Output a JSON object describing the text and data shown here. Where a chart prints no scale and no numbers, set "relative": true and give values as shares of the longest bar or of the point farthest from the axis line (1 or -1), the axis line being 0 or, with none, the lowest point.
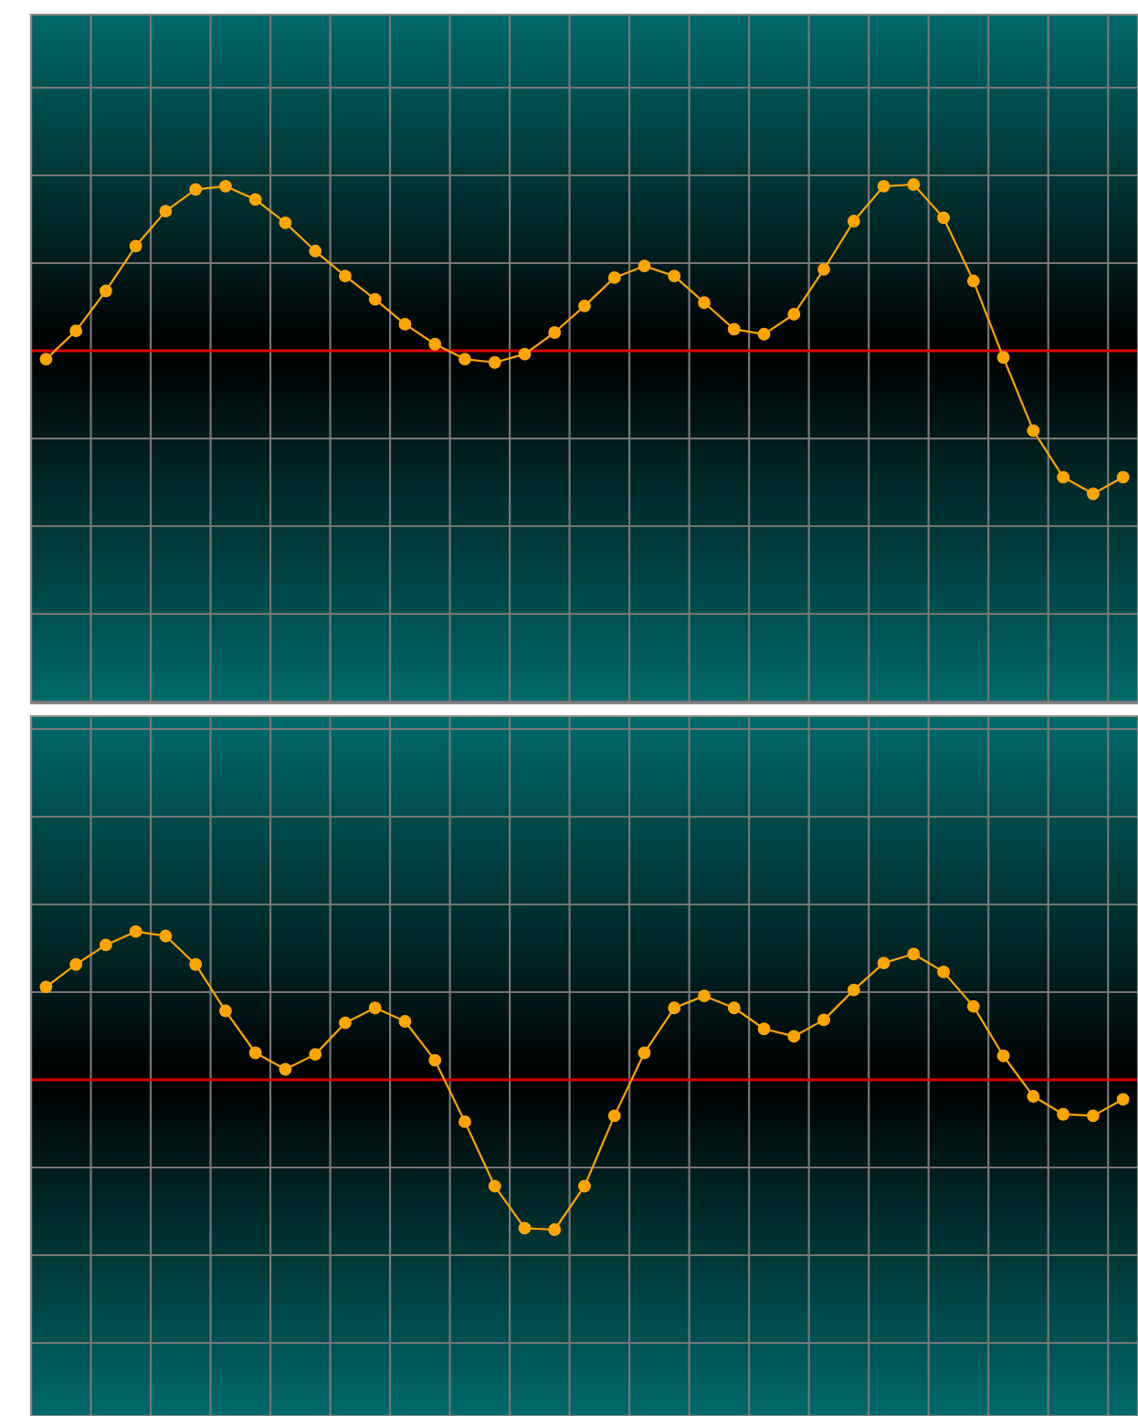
{
  "chart_data": [
    {
      "type": "line",
      "relative": true,
      "categories": [
        null,
        null,
        null,
        null,
        null,
        null,
        null,
        null,
        null,
        null,
        null,
        null,
        null,
        null,
        null,
        null,
        null,
        null,
        null,
        null,
        null,
        null,
        null,
        null,
        null,
        null,
        null,
        null,
        null,
        null,
        null,
        null,
        null,
        null,
        null,
        null,
        null
      ],
      "series": [
        {
          "color": "#ffa500",
          "values": [
            -0.05,
            0.12,
            0.36,
            0.63,
            0.84,
            0.97,
            0.99,
            0.91,
            0.77,
            0.6,
            0.45,
            0.31,
            0.16,
            0.04,
            -0.05,
            -0.07,
            -0.02,
            0.11,
            0.27,
            0.44,
            0.51,
            0.45,
            0.29,
            0.13,
            0.1,
            0.22,
            0.49,
            0.78,
            0.99,
            1.0,
            0.8,
            0.42,
            -0.04,
            -0.48,
            -0.76,
            -0.86,
            -0.76
          ]
        }
      ],
      "ref_lines": [
        {
          "axis": "y",
          "value": 0,
          "color": "#dd0000"
        }
      ],
      "grid": true,
      "marker": "circle",
      "line_style": "solid",
      "tick_labels": false
    },
    {
      "type": "line",
      "relative": true,
      "categories": [
        null,
        null,
        null,
        null,
        null,
        null,
        null,
        null,
        null,
        null,
        null,
        null,
        null,
        null,
        null,
        null,
        null,
        null,
        null,
        null,
        null,
        null,
        null,
        null,
        null,
        null,
        null,
        null,
        null,
        null,
        null,
        null,
        null,
        null,
        null,
        null,
        null
      ],
      "series": [
        {
          "color": "#ffa500",
          "values": [
            0.62,
            0.77,
            0.9,
            0.99,
            0.96,
            0.77,
            0.46,
            0.18,
            0.07,
            0.17,
            0.38,
            0.48,
            0.39,
            0.13,
            -0.28,
            -0.71,
            -0.99,
            -1.0,
            -0.71,
            -0.24,
            0.18,
            0.48,
            0.56,
            0.48,
            0.34,
            0.29,
            0.4,
            0.6,
            0.78,
            0.84,
            0.72,
            0.49,
            0.16,
            -0.11,
            -0.23,
            -0.24,
            -0.13
          ]
        }
      ],
      "ref_lines": [
        {
          "axis": "y",
          "value": 0,
          "color": "#dd0000"
        }
      ],
      "grid": true,
      "marker": "circle",
      "line_style": "solid",
      "tick_labels": false
    }
  ]
}
